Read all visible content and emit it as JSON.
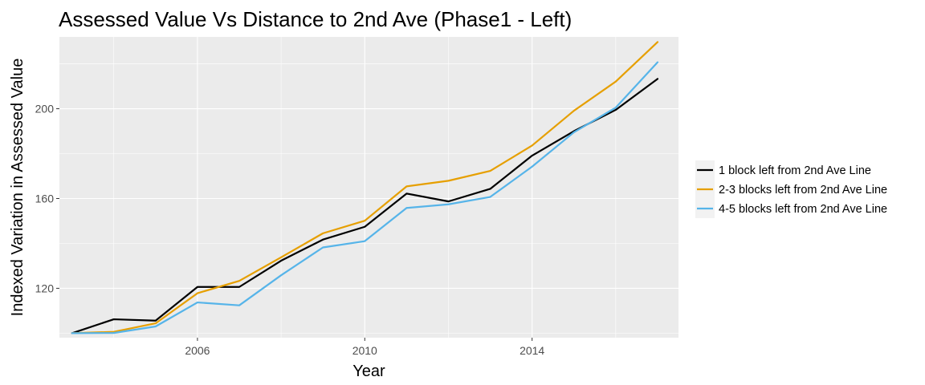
{
  "chart_data": {
    "type": "line",
    "title": "Assessed Value Vs Distance to 2nd Ave (Phase1 - Left)",
    "xlabel": "Year",
    "ylabel": "Indexed Variation in Assessed Value",
    "x": [
      2003,
      2004,
      2005,
      2006,
      2007,
      2008,
      2009,
      2010,
      2011,
      2012,
      2013,
      2014,
      2015,
      2016,
      2017
    ],
    "xlim": [
      2002.7,
      2017.5
    ],
    "ylim": [
      98,
      232
    ],
    "x_ticks": [
      2006,
      2010,
      2014
    ],
    "x_tick_labels": [
      "2006",
      "2010",
      "2014"
    ],
    "y_ticks": [
      120,
      160,
      200
    ],
    "y_tick_labels": [
      "120",
      "160",
      "200"
    ],
    "x_minor": [
      2004,
      2008,
      2012,
      2016
    ],
    "y_minor": [
      100,
      140,
      180,
      220
    ],
    "grid": true,
    "legend_position": "right",
    "series": [
      {
        "name": "1 block left from 2nd Ave Line",
        "color": "#000000",
        "values": [
          100,
          106.2,
          105.6,
          120.6,
          120.6,
          132.3,
          141.7,
          147.4,
          162.2,
          158.7,
          164.3,
          179.1,
          190.0,
          199.5,
          213.3
        ]
      },
      {
        "name": "2-3 blocks left from 2nd Ave Line",
        "color": "#E69F00",
        "values": [
          100,
          100.6,
          104.4,
          117.8,
          123.3,
          133.8,
          144.5,
          150.1,
          165.4,
          167.9,
          172.3,
          183.6,
          199.1,
          212.1,
          229.7
        ]
      },
      {
        "name": "4-5 blocks left from 2nd Ave Line",
        "color": "#56B4E9",
        "values": [
          100,
          100.1,
          103.0,
          113.7,
          112.4,
          125.8,
          138.2,
          141.0,
          155.8,
          157.4,
          160.7,
          174.2,
          189.5,
          200.5,
          220.7
        ]
      }
    ]
  }
}
